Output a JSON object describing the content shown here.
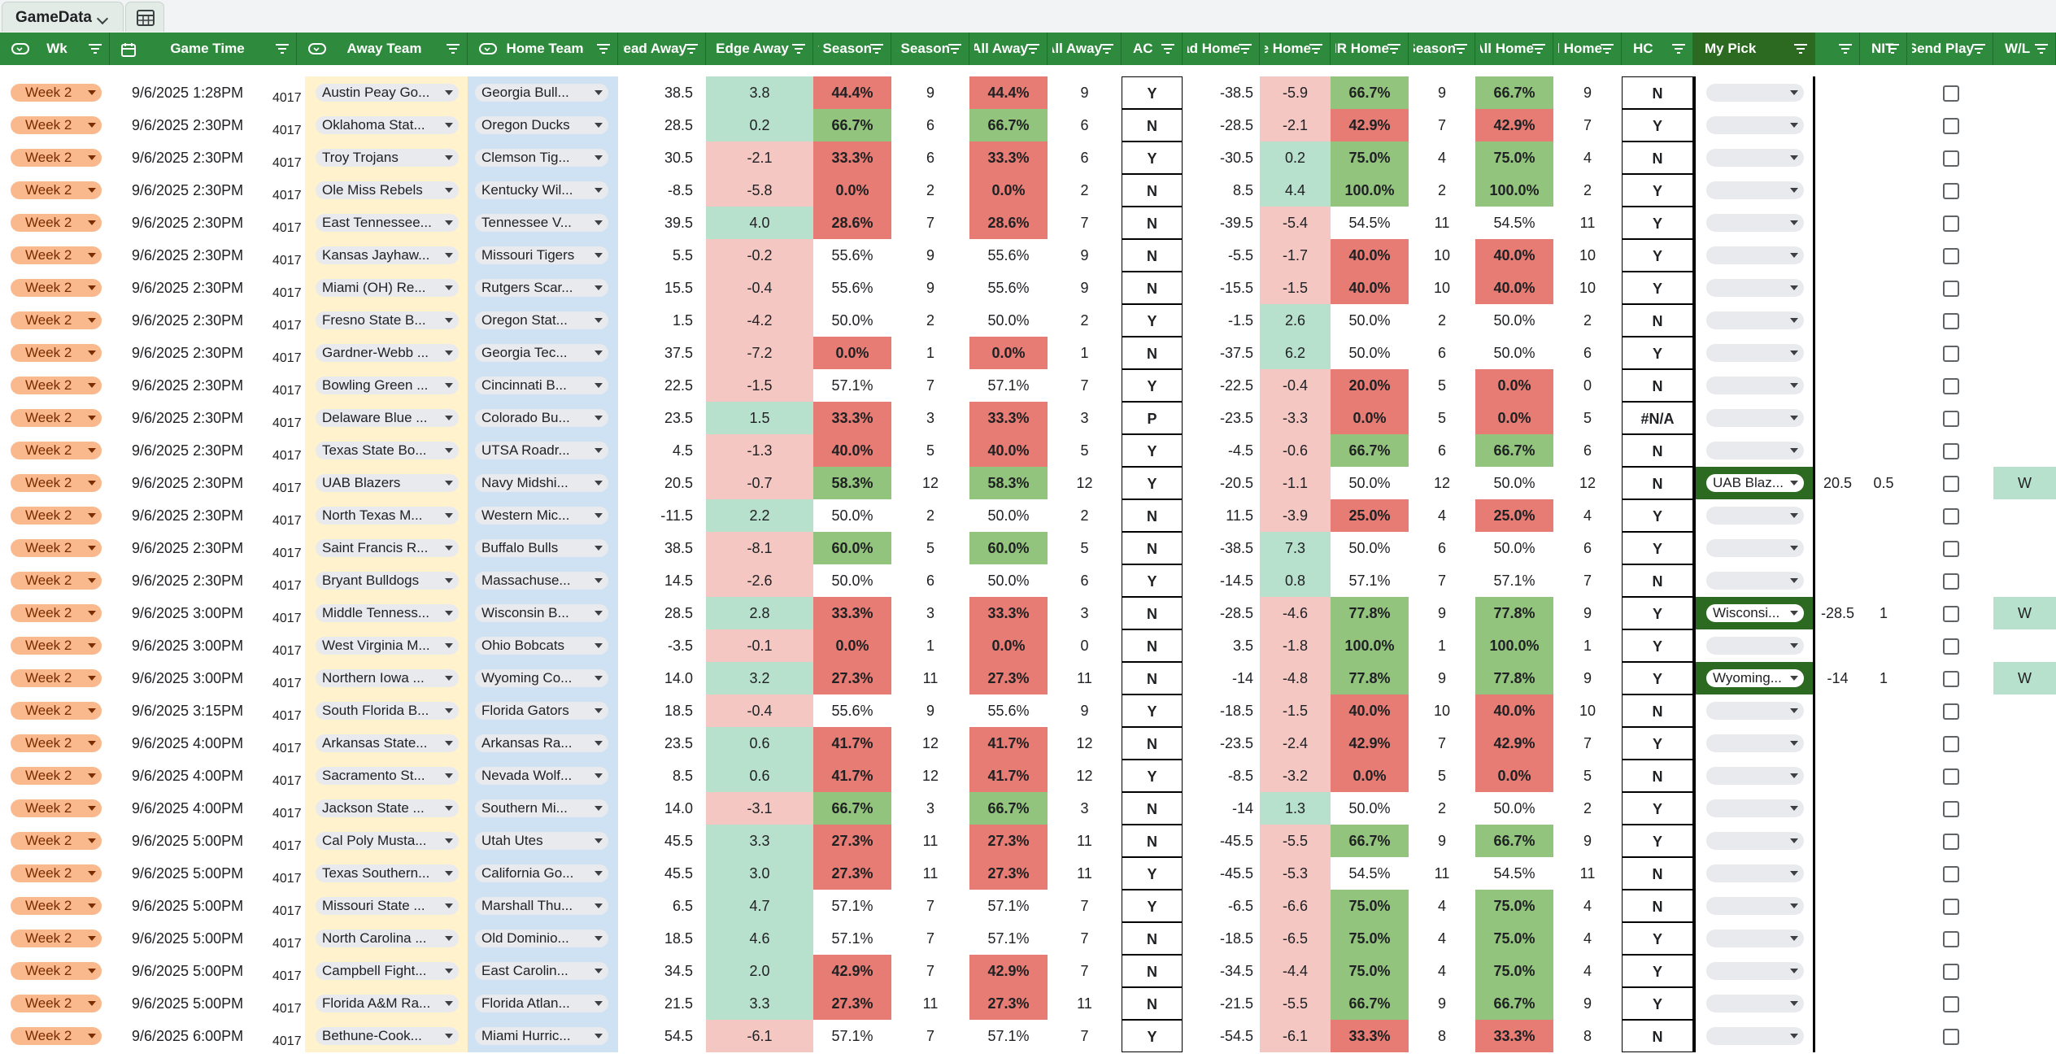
{
  "sheet": {
    "tab_name": "GameData",
    "view_icon": "table-view-icon"
  },
  "headers": {
    "wk": "Wk",
    "game_time": "Game Time",
    "away_team": "Away Team",
    "home_team": "Home Team",
    "spread_away": "Spread Away",
    "edge_away": "Edge Away",
    "away_season": "Away Season",
    "games_season": "Games Season",
    "at_all_away": "At All Away",
    "games_all_away": "Games All Away",
    "ac": "AC",
    "spread_home": "Spread Home",
    "edge_home": "Edge Home",
    "hr_home": "HR Home",
    "games_season_home": "Games Season",
    "at_all_home": "At All Home",
    "games_all_home": "Games All Home",
    "hc": "HC",
    "my_pick": "My Pick",
    "nit": "NIT",
    "send_play": "Send Play",
    "wl": "W/L"
  },
  "rows": [
    {
      "wk": "Week 2",
      "time": "9/6/2025 1:28PM",
      "id": "4017",
      "away": "Austin Peay Go...",
      "home": "Georgia Bull...",
      "sa": "38.5",
      "ea": "3.8",
      "ap": "44.4%",
      "ag": "9",
      "aap": "44.4%",
      "aag": "9",
      "ac": "Y",
      "sh": "-38.5",
      "eh": "-5.9",
      "hp": "66.7%",
      "hg": "9",
      "ahp": "66.7%",
      "ahg": "9",
      "hc": "N",
      "pick": "",
      "line": "",
      "nit": "",
      "wl": ""
    },
    {
      "wk": "Week 2",
      "time": "9/6/2025 2:30PM",
      "id": "4017",
      "away": "Oklahoma Stat...",
      "home": "Oregon Ducks",
      "sa": "28.5",
      "ea": "0.2",
      "ap": "66.7%",
      "ag": "6",
      "aap": "66.7%",
      "aag": "6",
      "ac": "N",
      "sh": "-28.5",
      "eh": "-2.1",
      "hp": "42.9%",
      "hg": "7",
      "ahp": "42.9%",
      "ahg": "7",
      "hc": "Y",
      "pick": "",
      "line": "",
      "nit": "",
      "wl": ""
    },
    {
      "wk": "Week 2",
      "time": "9/6/2025 2:30PM",
      "id": "4017",
      "away": "Troy Trojans",
      "home": "Clemson Tig...",
      "sa": "30.5",
      "ea": "-2.1",
      "ap": "33.3%",
      "ag": "6",
      "aap": "33.3%",
      "aag": "6",
      "ac": "Y",
      "sh": "-30.5",
      "eh": "0.2",
      "hp": "75.0%",
      "hg": "4",
      "ahp": "75.0%",
      "ahg": "4",
      "hc": "N",
      "pick": "",
      "line": "",
      "nit": "",
      "wl": ""
    },
    {
      "wk": "Week 2",
      "time": "9/6/2025 2:30PM",
      "id": "4017",
      "away": "Ole Miss Rebels",
      "home": "Kentucky Wil...",
      "sa": "-8.5",
      "ea": "-5.8",
      "ap": "0.0%",
      "ag": "2",
      "aap": "0.0%",
      "aag": "2",
      "ac": "N",
      "sh": "8.5",
      "eh": "4.4",
      "hp": "100.0%",
      "hg": "2",
      "ahp": "100.0%",
      "ahg": "2",
      "hc": "Y",
      "pick": "",
      "line": "",
      "nit": "",
      "wl": ""
    },
    {
      "wk": "Week 2",
      "time": "9/6/2025 2:30PM",
      "id": "4017",
      "away": "East Tennessee...",
      "home": "Tennessee V...",
      "sa": "39.5",
      "ea": "4.0",
      "ap": "28.6%",
      "ag": "7",
      "aap": "28.6%",
      "aag": "7",
      "ac": "N",
      "sh": "-39.5",
      "eh": "-5.4",
      "hp": "54.5%",
      "hg": "11",
      "ahp": "54.5%",
      "ahg": "11",
      "hc": "Y",
      "pick": "",
      "line": "",
      "nit": "",
      "wl": ""
    },
    {
      "wk": "Week 2",
      "time": "9/6/2025 2:30PM",
      "id": "4017",
      "away": "Kansas Jayhaw...",
      "home": "Missouri Tigers",
      "sa": "5.5",
      "ea": "-0.2",
      "ap": "55.6%",
      "ag": "9",
      "aap": "55.6%",
      "aag": "9",
      "ac": "N",
      "sh": "-5.5",
      "eh": "-1.7",
      "hp": "40.0%",
      "hg": "10",
      "ahp": "40.0%",
      "ahg": "10",
      "hc": "Y",
      "pick": "",
      "line": "",
      "nit": "",
      "wl": ""
    },
    {
      "wk": "Week 2",
      "time": "9/6/2025 2:30PM",
      "id": "4017",
      "away": "Miami (OH) Re...",
      "home": "Rutgers Scar...",
      "sa": "15.5",
      "ea": "-0.4",
      "ap": "55.6%",
      "ag": "9",
      "aap": "55.6%",
      "aag": "9",
      "ac": "N",
      "sh": "-15.5",
      "eh": "-1.5",
      "hp": "40.0%",
      "hg": "10",
      "ahp": "40.0%",
      "ahg": "10",
      "hc": "Y",
      "pick": "",
      "line": "",
      "nit": "",
      "wl": ""
    },
    {
      "wk": "Week 2",
      "time": "9/6/2025 2:30PM",
      "id": "4017",
      "away": "Fresno State B...",
      "home": "Oregon Stat...",
      "sa": "1.5",
      "ea": "-4.2",
      "ap": "50.0%",
      "ag": "2",
      "aap": "50.0%",
      "aag": "2",
      "ac": "Y",
      "sh": "-1.5",
      "eh": "2.6",
      "hp": "50.0%",
      "hg": "2",
      "ahp": "50.0%",
      "ahg": "2",
      "hc": "N",
      "pick": "",
      "line": "",
      "nit": "",
      "wl": ""
    },
    {
      "wk": "Week 2",
      "time": "9/6/2025 2:30PM",
      "id": "4017",
      "away": "Gardner-Webb ...",
      "home": "Georgia Tec...",
      "sa": "37.5",
      "ea": "-7.2",
      "ap": "0.0%",
      "ag": "1",
      "aap": "0.0%",
      "aag": "1",
      "ac": "N",
      "sh": "-37.5",
      "eh": "6.2",
      "hp": "50.0%",
      "hg": "6",
      "ahp": "50.0%",
      "ahg": "6",
      "hc": "Y",
      "pick": "",
      "line": "",
      "nit": "",
      "wl": ""
    },
    {
      "wk": "Week 2",
      "time": "9/6/2025 2:30PM",
      "id": "4017",
      "away": "Bowling Green ...",
      "home": "Cincinnati B...",
      "sa": "22.5",
      "ea": "-1.5",
      "ap": "57.1%",
      "ag": "7",
      "aap": "57.1%",
      "aag": "7",
      "ac": "Y",
      "sh": "-22.5",
      "eh": "-0.4",
      "hp": "20.0%",
      "hg": "5",
      "ahp": "0.0%",
      "ahg": "0",
      "hc": "N",
      "pick": "",
      "line": "",
      "nit": "",
      "wl": ""
    },
    {
      "wk": "Week 2",
      "time": "9/6/2025 2:30PM",
      "id": "4017",
      "away": "Delaware Blue ...",
      "home": "Colorado Bu...",
      "sa": "23.5",
      "ea": "1.5",
      "ap": "33.3%",
      "ag": "3",
      "aap": "33.3%",
      "aag": "3",
      "ac": "P",
      "sh": "-23.5",
      "eh": "-3.3",
      "hp": "0.0%",
      "hg": "5",
      "ahp": "0.0%",
      "ahg": "5",
      "hc": "#N/A",
      "pick": "",
      "line": "",
      "nit": "",
      "wl": ""
    },
    {
      "wk": "Week 2",
      "time": "9/6/2025 2:30PM",
      "id": "4017",
      "away": "Texas State Bo...",
      "home": "UTSA Roadr...",
      "sa": "4.5",
      "ea": "-1.3",
      "ap": "40.0%",
      "ag": "5",
      "aap": "40.0%",
      "aag": "5",
      "ac": "Y",
      "sh": "-4.5",
      "eh": "-0.6",
      "hp": "66.7%",
      "hg": "6",
      "ahp": "66.7%",
      "ahg": "6",
      "hc": "N",
      "pick": "",
      "line": "",
      "nit": "",
      "wl": ""
    },
    {
      "wk": "Week 2",
      "time": "9/6/2025 2:30PM",
      "id": "4017",
      "away": "UAB Blazers",
      "home": "Navy Midshi...",
      "sa": "20.5",
      "ea": "-0.7",
      "ap": "58.3%",
      "ag": "12",
      "aap": "58.3%",
      "aag": "12",
      "ac": "Y",
      "sh": "-20.5",
      "eh": "-1.1",
      "hp": "50.0%",
      "hg": "12",
      "ahp": "50.0%",
      "ahg": "12",
      "hc": "N",
      "pick": "UAB Blaz...",
      "line": "20.5",
      "nit": "0.5",
      "wl": "W"
    },
    {
      "wk": "Week 2",
      "time": "9/6/2025 2:30PM",
      "id": "4017",
      "away": "North Texas M...",
      "home": "Western Mic...",
      "sa": "-11.5",
      "ea": "2.2",
      "ap": "50.0%",
      "ag": "2",
      "aap": "50.0%",
      "aag": "2",
      "ac": "N",
      "sh": "11.5",
      "eh": "-3.9",
      "hp": "25.0%",
      "hg": "4",
      "ahp": "25.0%",
      "ahg": "4",
      "hc": "Y",
      "pick": "",
      "line": "",
      "nit": "",
      "wl": ""
    },
    {
      "wk": "Week 2",
      "time": "9/6/2025 2:30PM",
      "id": "4017",
      "away": "Saint Francis R...",
      "home": "Buffalo Bulls",
      "sa": "38.5",
      "ea": "-8.1",
      "ap": "60.0%",
      "ag": "5",
      "aap": "60.0%",
      "aag": "5",
      "ac": "N",
      "sh": "-38.5",
      "eh": "7.3",
      "hp": "50.0%",
      "hg": "6",
      "ahp": "50.0%",
      "ahg": "6",
      "hc": "Y",
      "pick": "",
      "line": "",
      "nit": "",
      "wl": ""
    },
    {
      "wk": "Week 2",
      "time": "9/6/2025 2:30PM",
      "id": "4017",
      "away": "Bryant Bulldogs",
      "home": "Massachuse...",
      "sa": "14.5",
      "ea": "-2.6",
      "ap": "50.0%",
      "ag": "6",
      "aap": "50.0%",
      "aag": "6",
      "ac": "Y",
      "sh": "-14.5",
      "eh": "0.8",
      "hp": "57.1%",
      "hg": "7",
      "ahp": "57.1%",
      "ahg": "7",
      "hc": "N",
      "pick": "",
      "line": "",
      "nit": "",
      "wl": ""
    },
    {
      "wk": "Week 2",
      "time": "9/6/2025 3:00PM",
      "id": "4017",
      "away": "Middle Tenness...",
      "home": "Wisconsin B...",
      "sa": "28.5",
      "ea": "2.8",
      "ap": "33.3%",
      "ag": "3",
      "aap": "33.3%",
      "aag": "3",
      "ac": "N",
      "sh": "-28.5",
      "eh": "-4.6",
      "hp": "77.8%",
      "hg": "9",
      "ahp": "77.8%",
      "ahg": "9",
      "hc": "Y",
      "pick": "Wisconsi...",
      "line": "-28.5",
      "nit": "1",
      "wl": "W"
    },
    {
      "wk": "Week 2",
      "time": "9/6/2025 3:00PM",
      "id": "4017",
      "away": "West Virginia M...",
      "home": "Ohio Bobcats",
      "sa": "-3.5",
      "ea": "-0.1",
      "ap": "0.0%",
      "ag": "1",
      "aap": "0.0%",
      "aag": "0",
      "ac": "N",
      "sh": "3.5",
      "eh": "-1.8",
      "hp": "100.0%",
      "hg": "1",
      "ahp": "100.0%",
      "ahg": "1",
      "hc": "Y",
      "pick": "",
      "line": "",
      "nit": "",
      "wl": ""
    },
    {
      "wk": "Week 2",
      "time": "9/6/2025 3:00PM",
      "id": "4017",
      "away": "Northern Iowa ...",
      "home": "Wyoming Co...",
      "sa": "14.0",
      "ea": "3.2",
      "ap": "27.3%",
      "ag": "11",
      "aap": "27.3%",
      "aag": "11",
      "ac": "N",
      "sh": "-14",
      "eh": "-4.8",
      "hp": "77.8%",
      "hg": "9",
      "ahp": "77.8%",
      "ahg": "9",
      "hc": "Y",
      "pick": "Wyoming...",
      "line": "-14",
      "nit": "1",
      "wl": "W"
    },
    {
      "wk": "Week 2",
      "time": "9/6/2025 3:15PM",
      "id": "4017",
      "away": "South Florida B...",
      "home": "Florida Gators",
      "sa": "18.5",
      "ea": "-0.4",
      "ap": "55.6%",
      "ag": "9",
      "aap": "55.6%",
      "aag": "9",
      "ac": "Y",
      "sh": "-18.5",
      "eh": "-1.5",
      "hp": "40.0%",
      "hg": "10",
      "ahp": "40.0%",
      "ahg": "10",
      "hc": "N",
      "pick": "",
      "line": "",
      "nit": "",
      "wl": ""
    },
    {
      "wk": "Week 2",
      "time": "9/6/2025 4:00PM",
      "id": "4017",
      "away": "Arkansas State...",
      "home": "Arkansas Ra...",
      "sa": "23.5",
      "ea": "0.6",
      "ap": "41.7%",
      "ag": "12",
      "aap": "41.7%",
      "aag": "12",
      "ac": "N",
      "sh": "-23.5",
      "eh": "-2.4",
      "hp": "42.9%",
      "hg": "7",
      "ahp": "42.9%",
      "ahg": "7",
      "hc": "Y",
      "pick": "",
      "line": "",
      "nit": "",
      "wl": ""
    },
    {
      "wk": "Week 2",
      "time": "9/6/2025 4:00PM",
      "id": "4017",
      "away": "Sacramento St...",
      "home": "Nevada Wolf...",
      "sa": "8.5",
      "ea": "0.6",
      "ap": "41.7%",
      "ag": "12",
      "aap": "41.7%",
      "aag": "12",
      "ac": "Y",
      "sh": "-8.5",
      "eh": "-3.2",
      "hp": "0.0%",
      "hg": "5",
      "ahp": "0.0%",
      "ahg": "5",
      "hc": "N",
      "pick": "",
      "line": "",
      "nit": "",
      "wl": ""
    },
    {
      "wk": "Week 2",
      "time": "9/6/2025 4:00PM",
      "id": "4017",
      "away": "Jackson State ...",
      "home": "Southern Mi...",
      "sa": "14.0",
      "ea": "-3.1",
      "ap": "66.7%",
      "ag": "3",
      "aap": "66.7%",
      "aag": "3",
      "ac": "N",
      "sh": "-14",
      "eh": "1.3",
      "hp": "50.0%",
      "hg": "2",
      "ahp": "50.0%",
      "ahg": "2",
      "hc": "Y",
      "pick": "",
      "line": "",
      "nit": "",
      "wl": ""
    },
    {
      "wk": "Week 2",
      "time": "9/6/2025 5:00PM",
      "id": "4017",
      "away": "Cal Poly Musta...",
      "home": "Utah Utes",
      "sa": "45.5",
      "ea": "3.3",
      "ap": "27.3%",
      "ag": "11",
      "aap": "27.3%",
      "aag": "11",
      "ac": "N",
      "sh": "-45.5",
      "eh": "-5.5",
      "hp": "66.7%",
      "hg": "9",
      "ahp": "66.7%",
      "ahg": "9",
      "hc": "Y",
      "pick": "",
      "line": "",
      "nit": "",
      "wl": ""
    },
    {
      "wk": "Week 2",
      "time": "9/6/2025 5:00PM",
      "id": "4017",
      "away": "Texas Southern...",
      "home": "California Go...",
      "sa": "45.5",
      "ea": "3.0",
      "ap": "27.3%",
      "ag": "11",
      "aap": "27.3%",
      "aag": "11",
      "ac": "Y",
      "sh": "-45.5",
      "eh": "-5.3",
      "hp": "54.5%",
      "hg": "11",
      "ahp": "54.5%",
      "ahg": "11",
      "hc": "N",
      "pick": "",
      "line": "",
      "nit": "",
      "wl": ""
    },
    {
      "wk": "Week 2",
      "time": "9/6/2025 5:00PM",
      "id": "4017",
      "away": "Missouri State ...",
      "home": "Marshall Thu...",
      "sa": "6.5",
      "ea": "4.7",
      "ap": "57.1%",
      "ag": "7",
      "aap": "57.1%",
      "aag": "7",
      "ac": "Y",
      "sh": "-6.5",
      "eh": "-6.6",
      "hp": "75.0%",
      "hg": "4",
      "ahp": "75.0%",
      "ahg": "4",
      "hc": "N",
      "pick": "",
      "line": "",
      "nit": "",
      "wl": ""
    },
    {
      "wk": "Week 2",
      "time": "9/6/2025 5:00PM",
      "id": "4017",
      "away": "North Carolina ...",
      "home": "Old Dominio...",
      "sa": "18.5",
      "ea": "4.6",
      "ap": "57.1%",
      "ag": "7",
      "aap": "57.1%",
      "aag": "7",
      "ac": "N",
      "sh": "-18.5",
      "eh": "-6.5",
      "hp": "75.0%",
      "hg": "4",
      "ahp": "75.0%",
      "ahg": "4",
      "hc": "Y",
      "pick": "",
      "line": "",
      "nit": "",
      "wl": ""
    },
    {
      "wk": "Week 2",
      "time": "9/6/2025 5:00PM",
      "id": "4017",
      "away": "Campbell Fight...",
      "home": "East Carolin...",
      "sa": "34.5",
      "ea": "2.0",
      "ap": "42.9%",
      "ag": "7",
      "aap": "42.9%",
      "aag": "7",
      "ac": "N",
      "sh": "-34.5",
      "eh": "-4.4",
      "hp": "75.0%",
      "hg": "4",
      "ahp": "75.0%",
      "ahg": "4",
      "hc": "Y",
      "pick": "",
      "line": "",
      "nit": "",
      "wl": ""
    },
    {
      "wk": "Week 2",
      "time": "9/6/2025 5:00PM",
      "id": "4017",
      "away": "Florida A&M Ra...",
      "home": "Florida Atlan...",
      "sa": "21.5",
      "ea": "3.3",
      "ap": "27.3%",
      "ag": "11",
      "aap": "27.3%",
      "aag": "11",
      "ac": "N",
      "sh": "-21.5",
      "eh": "-5.5",
      "hp": "66.7%",
      "hg": "9",
      "ahp": "66.7%",
      "ahg": "9",
      "hc": "Y",
      "pick": "",
      "line": "",
      "nit": "",
      "wl": ""
    },
    {
      "wk": "Week 2",
      "time": "9/6/2025 6:00PM",
      "id": "4017",
      "away": "Bethune-Cook...",
      "home": "Miami Hurric...",
      "sa": "54.5",
      "ea": "-6.1",
      "ap": "57.1%",
      "ag": "7",
      "aap": "57.1%",
      "aag": "7",
      "ac": "Y",
      "sh": "-54.5",
      "eh": "-6.1",
      "hp": "33.3%",
      "hg": "8",
      "ahp": "33.3%",
      "ahg": "8",
      "hc": "N",
      "pick": "",
      "line": "",
      "nit": "",
      "wl": ""
    }
  ]
}
